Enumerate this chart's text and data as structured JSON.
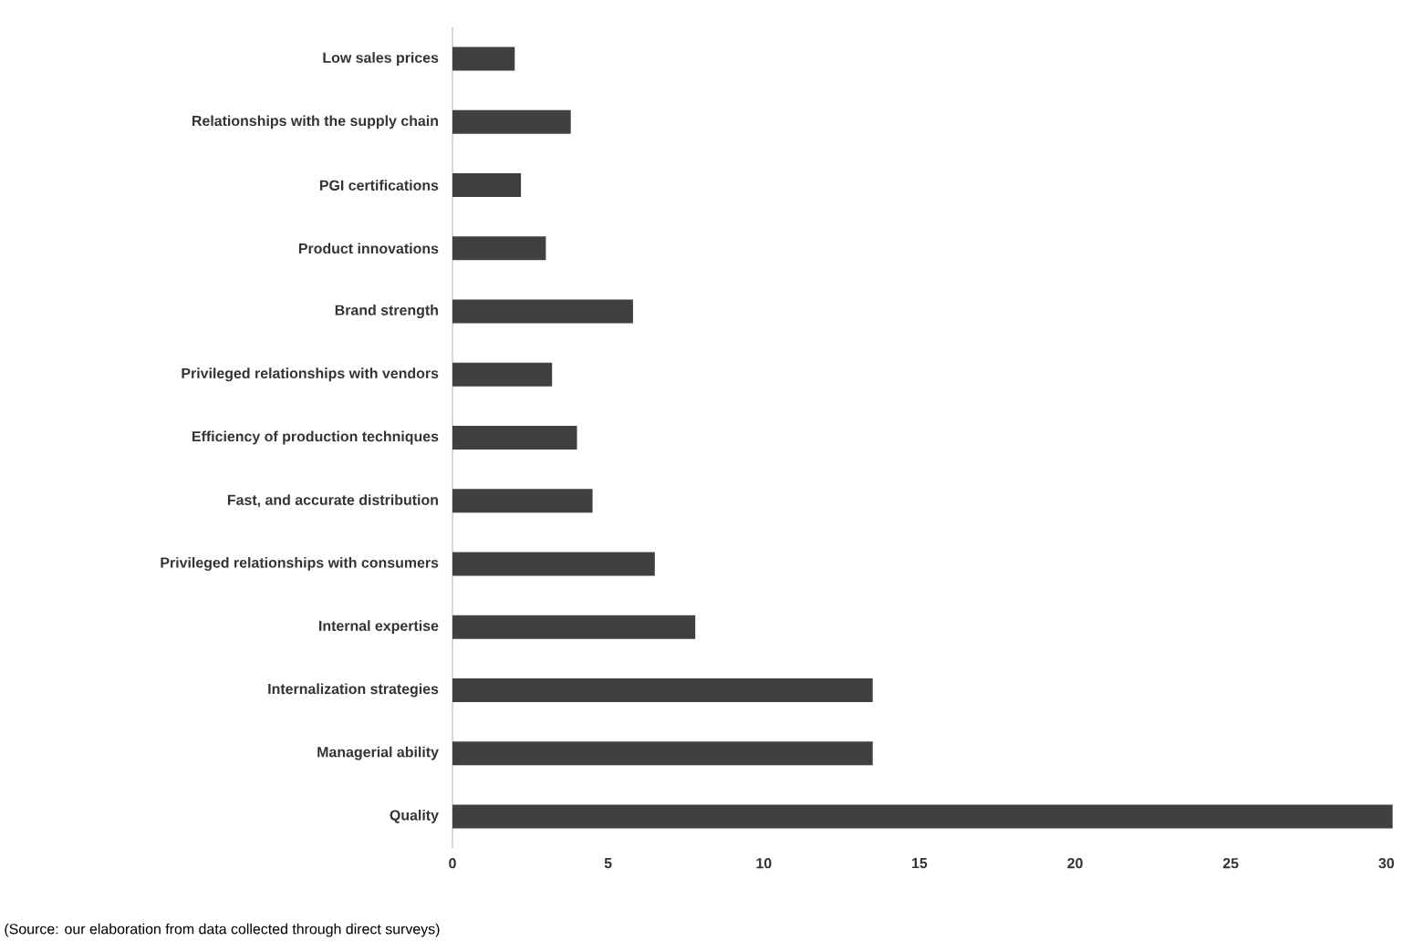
{
  "chart_data": {
    "type": "bar",
    "orientation": "horizontal",
    "categories": [
      "Low sales prices",
      "Relationships with the supply chain",
      "PGI certifications",
      "Product innovations",
      "Brand strength",
      "Privileged relationships with vendors",
      "Efficiency of production techniques",
      "Fast, and accurate distribution",
      "Privileged relationships with consumers",
      "Internal expertise",
      "Internalization strategies",
      "Managerial ability",
      "Quality"
    ],
    "values": [
      2.0,
      3.8,
      2.2,
      3.0,
      5.8,
      3.2,
      4.0,
      4.5,
      6.5,
      7.8,
      13.5,
      13.5,
      30.2
    ],
    "color": "#404040",
    "xlim": [
      0,
      30.3
    ],
    "xticks": [
      0,
      5,
      10,
      15,
      20,
      25,
      30
    ],
    "annotations": [
      "(Source: our elaboration from data collected through direct surveys)"
    ]
  }
}
